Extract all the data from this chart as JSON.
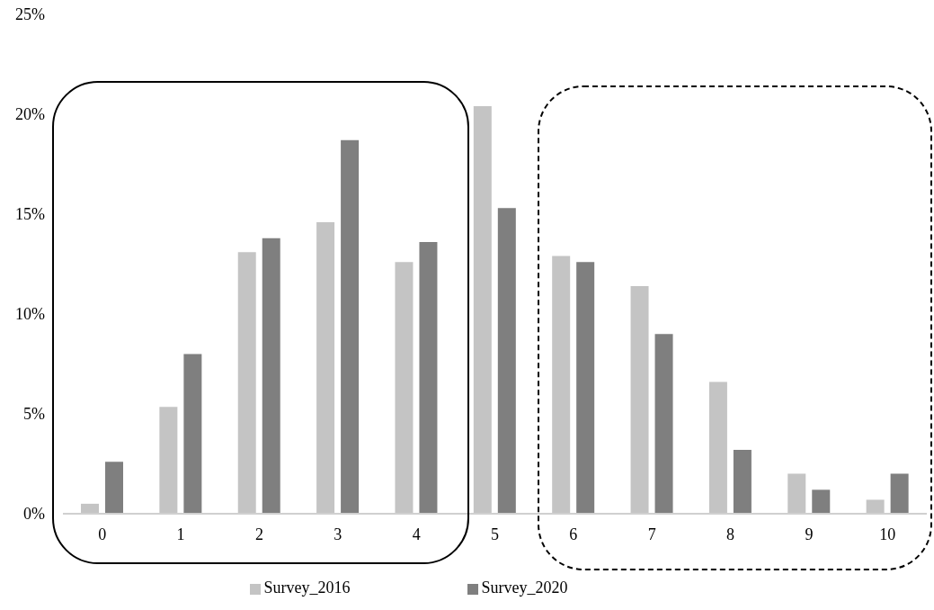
{
  "chart_data": {
    "type": "bar",
    "categories": [
      "0",
      "1",
      "2",
      "3",
      "4",
      "5",
      "6",
      "7",
      "8",
      "9",
      "10"
    ],
    "series": [
      {
        "name": "Survey_2016",
        "color": "#c4c4c4",
        "values": [
          0.5,
          5.35,
          13.1,
          14.6,
          12.6,
          20.4,
          12.9,
          11.4,
          6.6,
          2.0,
          0.7
        ]
      },
      {
        "name": "Survey_2020",
        "color": "#7f7f7f",
        "values": [
          2.6,
          8.0,
          13.8,
          18.7,
          13.6,
          15.3,
          12.6,
          9.0,
          3.2,
          1.2,
          2.0
        ]
      }
    ],
    "ylim": [
      0,
      25
    ],
    "yticks": [
      {
        "value": 0,
        "label": "0%"
      },
      {
        "value": 5,
        "label": "5%"
      },
      {
        "value": 10,
        "label": "10%"
      },
      {
        "value": 15,
        "label": "15%"
      },
      {
        "value": 20,
        "label": "20%"
      },
      {
        "value": 25,
        "label": "25%"
      }
    ],
    "grid": false,
    "legend": "bottom"
  }
}
